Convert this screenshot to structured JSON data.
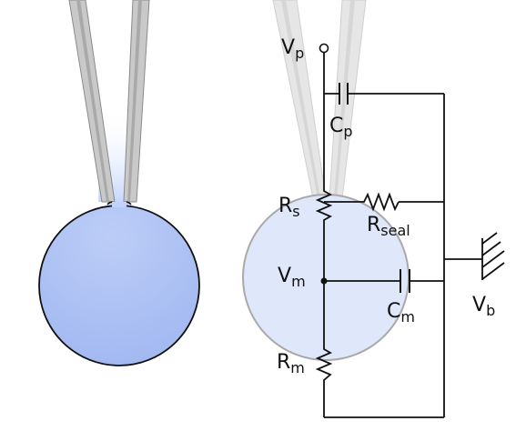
{
  "colors": {
    "cell_fill": "#a8bef4",
    "cell_fill_light": "#dde6fb",
    "pipette": "#c8c8c8",
    "wire": "#111111",
    "background": "#ffffff"
  },
  "labels": {
    "vp": {
      "main": "V",
      "sub": "p"
    },
    "cp": {
      "main": "C",
      "sub": "p"
    },
    "rs": {
      "main": "R",
      "sub": "s"
    },
    "rseal": {
      "main": "R",
      "sub": "seal"
    },
    "vm": {
      "main": "V",
      "sub": "m"
    },
    "cm": {
      "main": "C",
      "sub": "m"
    },
    "vb": {
      "main": "V",
      "sub": "b"
    },
    "rm": {
      "main": "R",
      "sub": "m"
    }
  }
}
